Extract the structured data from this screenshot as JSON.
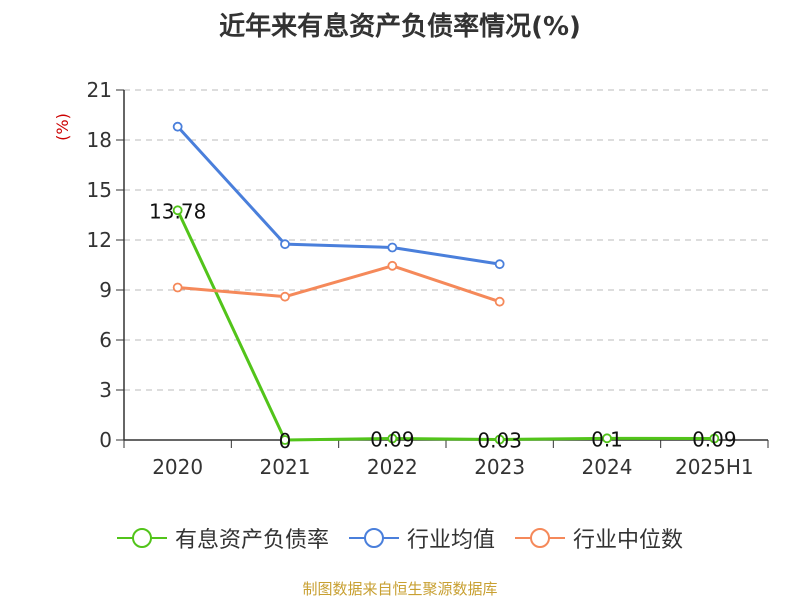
{
  "colors": {
    "debt_ratio": "#52c41a",
    "industry_avg": "#4a7fdb",
    "industry_median": "#f5895a",
    "axis": "#333333",
    "grid": "#bbbbbb",
    "unit": "#cc0000",
    "source": "#c8a032"
  },
  "source_text": "制图数据来自恒生聚源数据库",
  "chart_data": {
    "type": "line",
    "title": "近年来有息资产负债率情况(%)",
    "ylabel": "(%)",
    "xlabel": "",
    "categories": [
      "2020",
      "2021",
      "2022",
      "2023",
      "2024",
      "2025H1"
    ],
    "ylim": [
      0,
      21
    ],
    "yticks": [
      0,
      3,
      6,
      9,
      12,
      15,
      18,
      21
    ],
    "grid": true,
    "legend_position": "bottom",
    "series": [
      {
        "name": "有息资产负债率",
        "values": [
          13.78,
          0,
          0.09,
          0.03,
          0.1,
          0.09
        ],
        "labels": [
          "13.78",
          "0",
          "0.09",
          "0.03",
          "0.1",
          "0.09"
        ]
      },
      {
        "name": "行业均值",
        "values": [
          18.8,
          11.75,
          11.55,
          10.55,
          null,
          null
        ]
      },
      {
        "name": "行业中位数",
        "values": [
          9.15,
          8.6,
          10.45,
          8.3,
          null,
          null
        ]
      }
    ]
  }
}
